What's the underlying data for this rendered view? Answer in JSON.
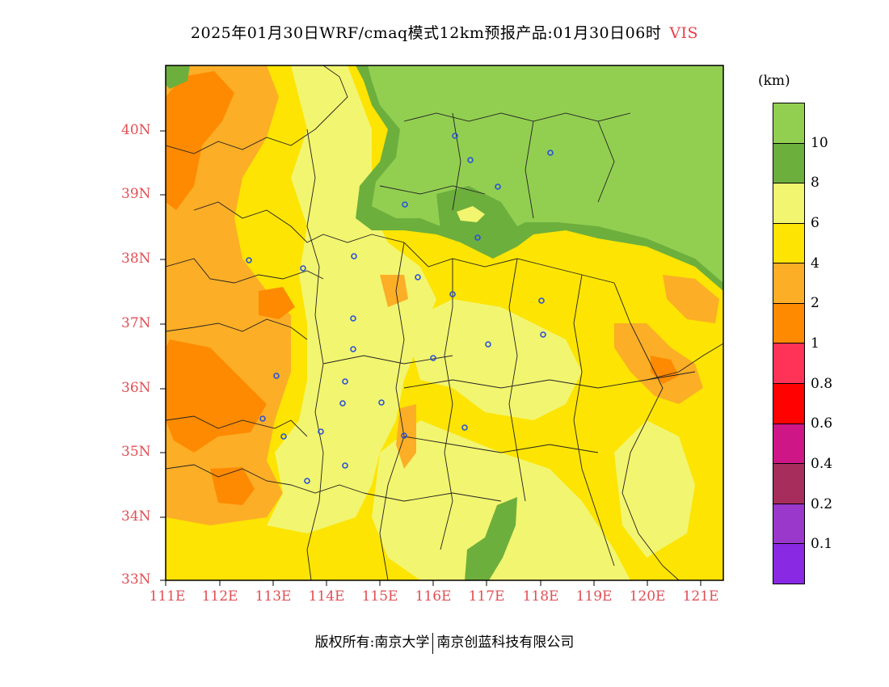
{
  "title": {
    "main": "2025年01月30日WRF/cmaq模式12km预报产品:01月30日06时",
    "variable": "VIS"
  },
  "colorbar": {
    "unit": "(km)",
    "labels": [
      "10",
      "8",
      "6",
      "4",
      "2",
      "1",
      "0.8",
      "0.6",
      "0.4",
      "0.2",
      "0.1"
    ],
    "colors_top_to_bottom": [
      "#92cf51",
      "#6daf3d",
      "#f2f56f",
      "#fde402",
      "#fcae26",
      "#fe8a01",
      "#ff3257",
      "#ff0200",
      "#cf1687",
      "#a72d5c",
      "#9a38cc",
      "#8a29e4"
    ]
  },
  "map": {
    "lat_labels": [
      "40N",
      "39N",
      "38N",
      "37N",
      "36N",
      "35N",
      "34N",
      "33N"
    ],
    "lon_labels": [
      "111E",
      "112E",
      "113E",
      "114E",
      "115E",
      "116E",
      "117E",
      "118E",
      "119E",
      "120E",
      "121E"
    ],
    "lat_range": [
      33,
      41
    ],
    "lon_range": [
      111,
      121.4
    ]
  },
  "footer": {
    "left": "版权所有:南京大学",
    "right": "南京创蓝科技有限公司"
  }
}
